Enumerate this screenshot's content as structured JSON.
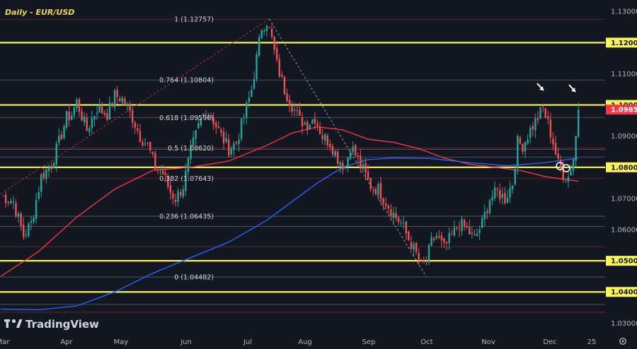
{
  "chart_data": {
    "type": "candlestick",
    "title": "Daily - EUR/USD",
    "ylim": [
      1.026,
      1.133
    ],
    "y_ticks": [
      "1.13000",
      "1.12000",
      "1.11000",
      "1.10000",
      "1.09000",
      "1.08000",
      "1.07000",
      "1.06000",
      "1.05000",
      "1.04000",
      "1.03000"
    ],
    "x_ticks": [
      "Mar",
      "Apr",
      "May",
      "Jun",
      "Jul",
      "Aug",
      "Sep",
      "Oct",
      "Nov",
      "Dec",
      "25"
    ],
    "current_price": "1.09850",
    "key_levels": [
      1.12,
      1.1,
      1.08,
      1.05,
      1.04
    ],
    "thin_levels": [
      1.1275,
      1.108,
      1.096,
      1.0862,
      1.0857,
      1.0833,
      1.0765,
      1.0643,
      1.061,
      1.0545,
      1.0448,
      1.036,
      1.0335
    ],
    "fibonacci": [
      {
        "label": "1 (1.12757)",
        "value": 1.12757
      },
      {
        "label": "0.764 (1.10804)",
        "value": 1.10804
      },
      {
        "label": "0.618 (1.09596)",
        "value": 1.09596
      },
      {
        "label": "0.5 (1.08620)",
        "value": 1.0862
      },
      {
        "label": "0.382 (1.07643)",
        "value": 1.07643
      },
      {
        "label": "0.236 (1.06435)",
        "value": 1.06435
      },
      {
        "label": "0 (1.04482)",
        "value": 1.04482
      }
    ],
    "close_anchors": [
      [
        0,
        1.071
      ],
      [
        5,
        1.069
      ],
      [
        9,
        1.058
      ],
      [
        12,
        1.062
      ],
      [
        16,
        1.077
      ],
      [
        20,
        1.081
      ],
      [
        23,
        1.088
      ],
      [
        26,
        1.096
      ],
      [
        28,
        1.097
      ],
      [
        30,
        1.101
      ],
      [
        34,
        1.092
      ],
      [
        38,
        1.099
      ],
      [
        42,
        1.097
      ],
      [
        45,
        1.103
      ],
      [
        48,
        1.102
      ],
      [
        52,
        1.096
      ],
      [
        55,
        1.09
      ],
      [
        58,
        1.087
      ],
      [
        61,
        1.08
      ],
      [
        64,
        1.078
      ],
      [
        67,
        1.072
      ],
      [
        69,
        1.07
      ],
      [
        72,
        1.074
      ],
      [
        75,
        1.085
      ],
      [
        78,
        1.093
      ],
      [
        81,
        1.099
      ],
      [
        84,
        1.095
      ],
      [
        87,
        1.09
      ],
      [
        90,
        1.086
      ],
      [
        93,
        1.088
      ],
      [
        96,
        1.096
      ],
      [
        99,
        1.105
      ],
      [
        101,
        1.115
      ],
      [
        103,
        1.125
      ],
      [
        105,
        1.127
      ],
      [
        107,
        1.121
      ],
      [
        109,
        1.113
      ],
      [
        112,
        1.105
      ],
      [
        115,
        1.1
      ],
      [
        118,
        1.095
      ],
      [
        121,
        1.094
      ],
      [
        124,
        1.096
      ],
      [
        127,
        1.09
      ],
      [
        130,
        1.088
      ],
      [
        133,
        1.083
      ],
      [
        136,
        1.08
      ],
      [
        138,
        1.087
      ],
      [
        140,
        1.084
      ],
      [
        143,
        1.079
      ],
      [
        146,
        1.074
      ],
      [
        149,
        1.073
      ],
      [
        152,
        1.069
      ],
      [
        155,
        1.065
      ],
      [
        158,
        1.062
      ],
      [
        161,
        1.057
      ],
      [
        164,
        1.052
      ],
      [
        166,
        1.048
      ],
      [
        168,
        1.05
      ],
      [
        170,
        1.056
      ],
      [
        172,
        1.058
      ],
      [
        175,
        1.054
      ],
      [
        178,
        1.058
      ],
      [
        181,
        1.062
      ],
      [
        184,
        1.06
      ],
      [
        187,
        1.057
      ],
      [
        190,
        1.062
      ],
      [
        193,
        1.07
      ],
      [
        196,
        1.072
      ],
      [
        199,
        1.07
      ],
      [
        202,
        1.075
      ],
      [
        204,
        1.088
      ],
      [
        206,
        1.087
      ],
      [
        209,
        1.092
      ],
      [
        212,
        1.096
      ],
      [
        214,
        1.099
      ],
      [
        216,
        1.094
      ],
      [
        218,
        1.088
      ],
      [
        220,
        1.081
      ],
      [
        222,
        1.078
      ],
      [
        224,
        1.077
      ],
      [
        226,
        1.083
      ],
      [
        227,
        1.09
      ],
      [
        228,
        1.0985
      ]
    ],
    "series": [
      {
        "name": "",
        "color": "#f23645",
        "kind": "ma_short",
        "points": [
          [
            0,
            1.045
          ],
          [
            15,
            1.053
          ],
          [
            30,
            1.064
          ],
          [
            45,
            1.073
          ],
          [
            60,
            1.079
          ],
          [
            75,
            1.08
          ],
          [
            90,
            1.082
          ],
          [
            105,
            1.087
          ],
          [
            115,
            1.091
          ],
          [
            125,
            1.093
          ],
          [
            135,
            1.092
          ],
          [
            145,
            1.089
          ],
          [
            155,
            1.088
          ],
          [
            165,
            1.086
          ],
          [
            175,
            1.083
          ],
          [
            185,
            1.081
          ],
          [
            195,
            1.08
          ],
          [
            205,
            1.079
          ],
          [
            215,
            1.077
          ],
          [
            228,
            1.0755
          ]
        ]
      },
      {
        "name": "",
        "color": "#2962ff",
        "kind": "ma_long",
        "points": [
          [
            0,
            1.0345
          ],
          [
            15,
            1.0343
          ],
          [
            30,
            1.0355
          ],
          [
            45,
            1.04
          ],
          [
            60,
            1.046
          ],
          [
            75,
            1.051
          ],
          [
            90,
            1.056
          ],
          [
            105,
            1.063
          ],
          [
            115,
            1.069
          ],
          [
            125,
            1.075
          ],
          [
            135,
            1.08
          ],
          [
            145,
            1.0825
          ],
          [
            155,
            1.083
          ],
          [
            170,
            1.0828
          ],
          [
            185,
            1.0815
          ],
          [
            200,
            1.0805
          ],
          [
            215,
            1.0815
          ],
          [
            228,
            1.083
          ]
        ]
      }
    ],
    "trend_lines": [
      {
        "from": [
          0,
          1.0715
        ],
        "to": [
          106,
          1.1276
        ],
        "style": "dashed",
        "color": "#c2322f"
      },
      {
        "from": [
          106,
          1.1276
        ],
        "to": [
          168,
          1.0448
        ],
        "style": "dashed",
        "color": "#9598a1"
      }
    ],
    "annotations": [
      "arrow above Nov high",
      "arrow above latest candle",
      "two circles on Dec lows"
    ],
    "colors": {
      "up": "#26a69a",
      "down": "#ef5350",
      "key_level": "#f8f35a",
      "background": "#131722"
    }
  },
  "branding": {
    "logo_text": "TradingView"
  }
}
